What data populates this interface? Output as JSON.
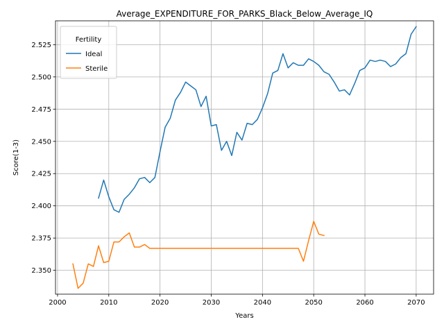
{
  "chart_data": {
    "type": "line",
    "title": "Average_EXPENDITURE_FOR_PARKS_Black_Below_Average_IQ",
    "xlabel": "Years",
    "ylabel": "Score(1-3)",
    "xlim": [
      1999.6,
      2073.4
    ],
    "ylim": [
      2.3315,
      2.5435
    ],
    "xticks": [
      2000,
      2010,
      2020,
      2030,
      2040,
      2050,
      2060,
      2070
    ],
    "yticks": [
      2.35,
      2.375,
      2.4,
      2.425,
      2.45,
      2.475,
      2.5,
      2.525
    ],
    "ytick_labels": [
      "2.350",
      "2.375",
      "2.400",
      "2.425",
      "2.450",
      "2.475",
      "2.500",
      "2.525"
    ],
    "grid": true,
    "legend": {
      "title": "Fertility",
      "position": "top-left"
    },
    "series": [
      {
        "name": "Ideal",
        "color": "#1f77b4",
        "x": [
          2008,
          2009,
          2010,
          2011,
          2012,
          2013,
          2014,
          2015,
          2016,
          2017,
          2018,
          2019,
          2020,
          2021,
          2022,
          2023,
          2024,
          2025,
          2026,
          2027,
          2028,
          2029,
          2030,
          2031,
          2032,
          2033,
          2034,
          2035,
          2036,
          2037,
          2038,
          2039,
          2040,
          2041,
          2042,
          2043,
          2044,
          2045,
          2046,
          2047,
          2048,
          2049,
          2050,
          2051,
          2052,
          2053,
          2054,
          2055,
          2056,
          2057,
          2058,
          2059,
          2060,
          2061,
          2062,
          2063,
          2064,
          2065,
          2066,
          2067,
          2068,
          2069,
          2070
        ],
        "y": [
          2.406,
          2.42,
          2.407,
          2.397,
          2.395,
          2.405,
          2.409,
          2.414,
          2.421,
          2.422,
          2.418,
          2.422,
          2.442,
          2.461,
          2.468,
          2.482,
          2.488,
          2.496,
          2.493,
          2.49,
          2.477,
          2.485,
          2.462,
          2.463,
          2.443,
          2.45,
          2.439,
          2.457,
          2.451,
          2.464,
          2.463,
          2.467,
          2.476,
          2.487,
          2.503,
          2.505,
          2.518,
          2.507,
          2.511,
          2.509,
          2.509,
          2.514,
          2.512,
          2.509,
          2.504,
          2.502,
          2.496,
          2.489,
          2.49,
          2.486,
          2.495,
          2.505,
          2.507,
          2.513,
          2.512,
          2.513,
          2.512,
          2.508,
          2.51,
          2.515,
          2.518,
          2.533,
          2.539
        ]
      },
      {
        "name": "Sterile",
        "color": "#ff7f0e",
        "x": [
          2003,
          2004,
          2005,
          2006,
          2007,
          2008,
          2009,
          2010,
          2011,
          2012,
          2013,
          2014,
          2015,
          2016,
          2017,
          2018,
          2019,
          2020,
          2021,
          2022,
          2023,
          2024,
          2025,
          2026,
          2027,
          2028,
          2029,
          2030,
          2031,
          2032,
          2033,
          2034,
          2035,
          2036,
          2037,
          2038,
          2039,
          2040,
          2041,
          2042,
          2043,
          2044,
          2045,
          2046,
          2047,
          2048,
          2049,
          2050,
          2051,
          2052
        ],
        "y": [
          2.355,
          2.336,
          2.34,
          2.355,
          2.353,
          2.369,
          2.356,
          2.357,
          2.372,
          2.372,
          2.376,
          2.379,
          2.368,
          2.368,
          2.37,
          2.367,
          2.367,
          2.367,
          2.367,
          2.367,
          2.367,
          2.367,
          2.367,
          2.367,
          2.367,
          2.367,
          2.367,
          2.367,
          2.367,
          2.367,
          2.367,
          2.367,
          2.367,
          2.367,
          2.367,
          2.367,
          2.367,
          2.367,
          2.367,
          2.367,
          2.367,
          2.367,
          2.367,
          2.367,
          2.367,
          2.357,
          2.373,
          2.388,
          2.378,
          2.377
        ]
      }
    ]
  }
}
